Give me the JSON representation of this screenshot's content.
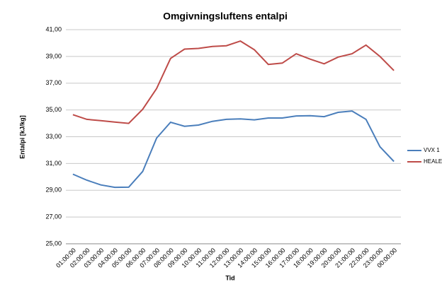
{
  "chart_data": {
    "type": "line",
    "title": "Omgivningsluftens entalpi",
    "x_label": "Tid",
    "y_label": "Entalpi [kJ/kg]",
    "categories": [
      "01:00:00",
      "02:00:00",
      "03:00:00",
      "04:00:00",
      "05:00:00",
      "06:00:00",
      "07:00:00",
      "08:00:00",
      "09:00:00",
      "10:00:00",
      "11:00:00",
      "12:00:00",
      "13:00:00",
      "14:00:00",
      "15:00:00",
      "16:00:00",
      "17:00:00",
      "18:00:00",
      "19:00:00",
      "20:00:00",
      "21:00:00",
      "22:00:00",
      "23:00:00",
      "00:00:00"
    ],
    "series": [
      {
        "name": "VVX 1",
        "color": "#4a7ebb",
        "values": [
          30.2,
          29.75,
          29.4,
          29.22,
          29.23,
          30.4,
          32.9,
          34.08,
          33.78,
          33.87,
          34.15,
          34.3,
          34.33,
          34.26,
          34.4,
          34.4,
          34.55,
          34.57,
          34.5,
          34.82,
          34.92,
          34.3,
          32.25,
          31.15
        ]
      },
      {
        "name": "HEALEX",
        "color": "#be4b48",
        "values": [
          34.65,
          34.3,
          34.2,
          34.1,
          34.0,
          35.05,
          36.6,
          38.85,
          39.55,
          39.6,
          39.75,
          39.8,
          40.15,
          39.5,
          38.4,
          38.5,
          39.2,
          38.8,
          38.45,
          38.95,
          39.2,
          39.85,
          39.0,
          37.95
        ]
      }
    ],
    "ylim": [
      25,
      41
    ],
    "yticks": [
      {
        "value": 25,
        "label": "25,00"
      },
      {
        "value": 27,
        "label": "27,00"
      },
      {
        "value": 29,
        "label": "29,00"
      },
      {
        "value": 31,
        "label": "31,00"
      },
      {
        "value": 33,
        "label": "33,00"
      },
      {
        "value": 35,
        "label": "35,00"
      },
      {
        "value": 37,
        "label": "37,00"
      },
      {
        "value": 39,
        "label": "39,00"
      },
      {
        "value": 41,
        "label": "41,00"
      }
    ],
    "grid": true,
    "legend": "right"
  }
}
